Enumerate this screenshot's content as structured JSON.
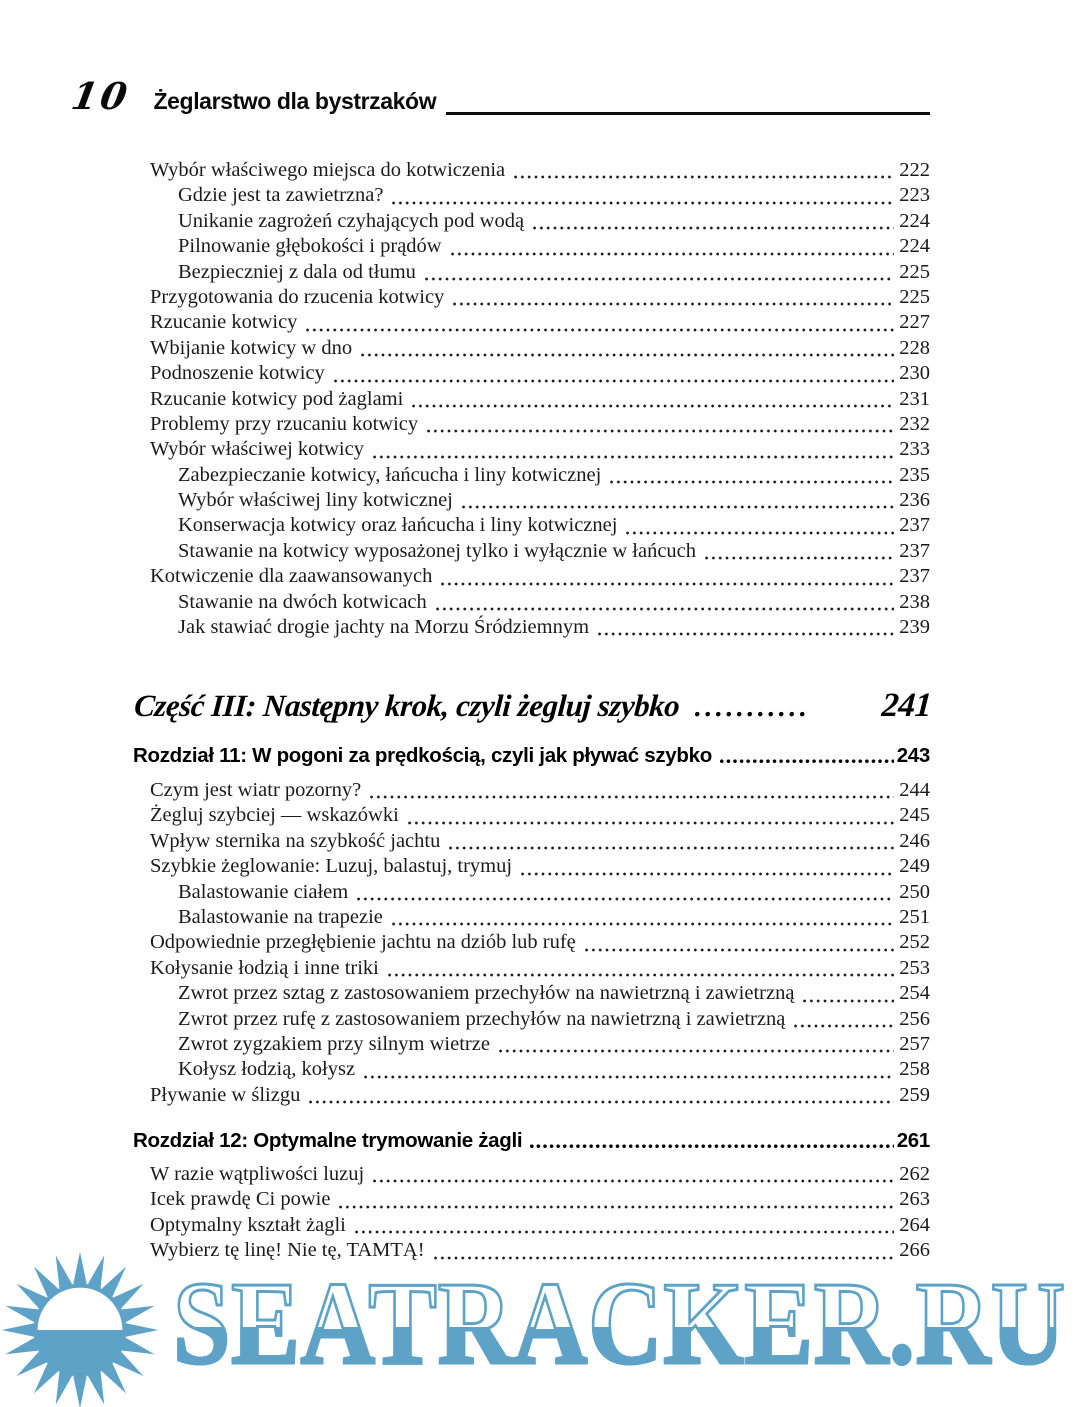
{
  "header": {
    "page_number": "10",
    "running_title": "Żeglarstwo dla bystrzaków"
  },
  "toc": {
    "sections": [
      {
        "type": "entries",
        "items": [
          {
            "text": "Wybór właściwego miejsca do kotwiczenia",
            "page": "222",
            "level": 1
          },
          {
            "text": "Gdzie jest ta zawietrzna?",
            "page": "223",
            "level": 2
          },
          {
            "text": "Unikanie zagrożeń czyhających pod wodą",
            "page": "224",
            "level": 2
          },
          {
            "text": "Pilnowanie głębokości i prądów",
            "page": "224",
            "level": 2
          },
          {
            "text": "Bezpieczniej z dala od tłumu",
            "page": "225",
            "level": 2
          },
          {
            "text": "Przygotowania do rzucenia kotwicy",
            "page": "225",
            "level": 1
          },
          {
            "text": "Rzucanie kotwicy",
            "page": "227",
            "level": 1
          },
          {
            "text": "Wbijanie kotwicy w dno",
            "page": "228",
            "level": 1
          },
          {
            "text": "Podnoszenie kotwicy",
            "page": "230",
            "level": 1
          },
          {
            "text": "Rzucanie kotwicy pod żaglami",
            "page": "231",
            "level": 1
          },
          {
            "text": "Problemy przy rzucaniu kotwicy",
            "page": "232",
            "level": 1
          },
          {
            "text": "Wybór właściwej kotwicy",
            "page": "233",
            "level": 1
          },
          {
            "text": "Zabezpieczanie kotwicy, łańcucha i liny kotwicznej",
            "page": "235",
            "level": 2
          },
          {
            "text": "Wybór właściwej liny kotwicznej",
            "page": "236",
            "level": 2
          },
          {
            "text": "Konserwacja kotwicy oraz łańcucha i liny kotwicznej",
            "page": "237",
            "level": 2
          },
          {
            "text": "Stawanie na kotwicy wyposażonej tylko i wyłącznie w łańcuch",
            "page": "237",
            "level": 2
          },
          {
            "text": "Kotwiczenie dla zaawansowanych",
            "page": "237",
            "level": 1
          },
          {
            "text": "Stawanie na dwóch kotwicach",
            "page": "238",
            "level": 2
          },
          {
            "text": "Jak stawiać drogie jachty na Morzu Śródziemnym",
            "page": "239",
            "level": 2
          }
        ]
      },
      {
        "type": "part",
        "title": "Część III: Następny krok, czyli żegluj szybko",
        "dots": "...........",
        "page": "241"
      },
      {
        "type": "chapter",
        "title": "Rozdział 11: W pogoni za prędkością, czyli jak pływać szybko",
        "page": "243"
      },
      {
        "type": "entries",
        "items": [
          {
            "text": "Czym jest wiatr pozorny?",
            "page": "244",
            "level": 1
          },
          {
            "text": "Żegluj szybciej — wskazówki",
            "page": "245",
            "level": 1
          },
          {
            "text": "Wpływ sternika na szybkość jachtu",
            "page": "246",
            "level": 1
          },
          {
            "text": "Szybkie żeglowanie: Luzuj, balastuj, trymuj",
            "page": "249",
            "level": 1
          },
          {
            "text": "Balastowanie ciałem",
            "page": "250",
            "level": 2
          },
          {
            "text": "Balastowanie na trapezie",
            "page": "251",
            "level": 2
          },
          {
            "text": "Odpowiednie przegłębienie jachtu na dziób lub rufę",
            "page": "252",
            "level": 1
          },
          {
            "text": "Kołysanie łodzią i inne triki",
            "page": "253",
            "level": 1
          },
          {
            "text": "Zwrot przez sztag z zastosowaniem przechyłów na nawietrzną i zawietrzną",
            "page": "254",
            "level": 2
          },
          {
            "text": "Zwrot przez rufę z zastosowaniem przechyłów na nawietrzną i zawietrzną",
            "page": "256",
            "level": 2
          },
          {
            "text": "Zwrot zygzakiem przy silnym wietrze",
            "page": "257",
            "level": 2
          },
          {
            "text": "Kołysz łodzią, kołysz",
            "page": "258",
            "level": 2
          },
          {
            "text": "Pływanie w ślizgu",
            "page": "259",
            "level": 1
          }
        ]
      },
      {
        "type": "chapter",
        "title": "Rozdział 12: Optymalne trymowanie żagli",
        "page": "261"
      },
      {
        "type": "entries",
        "items": [
          {
            "text": "W razie wątpliwości luzuj",
            "page": "262",
            "level": 1
          },
          {
            "text": "Icek prawdę Ci powie",
            "page": "263",
            "level": 1
          },
          {
            "text": "Optymalny kształt żagli",
            "page": "264",
            "level": 1
          },
          {
            "text": "Wybierz tę linę! Nie tę, TAMTĄ!",
            "page": "266",
            "level": 1
          }
        ]
      }
    ]
  },
  "watermark": {
    "text": "SEATRACKER.RU",
    "color": "#5ea3c7",
    "icon": "sun-over-sea-icon"
  }
}
